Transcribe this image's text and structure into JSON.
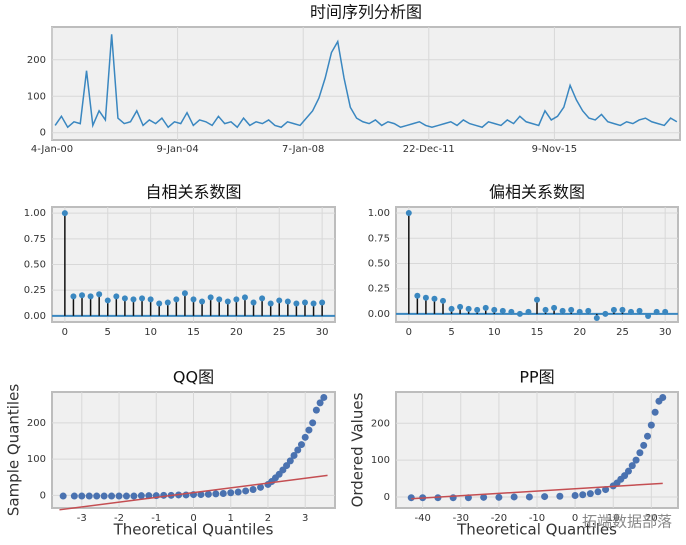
{
  "watermark": "拓端数据部落",
  "chart_data": [
    {
      "type": "line",
      "title": "时间序列分析图",
      "color": "#3a87c0",
      "categories": [
        "4-Jan-00",
        null,
        null,
        null,
        null,
        null,
        null,
        null,
        null,
        null,
        null,
        null,
        null,
        null,
        null,
        null,
        null,
        null,
        null,
        null,
        "9-Jan-04",
        null,
        null,
        null,
        null,
        null,
        null,
        null,
        null,
        null,
        null,
        null,
        null,
        null,
        null,
        null,
        null,
        null,
        null,
        null,
        "7-Jan-08",
        null,
        null,
        null,
        null,
        null,
        null,
        null,
        null,
        null,
        null,
        null,
        null,
        null,
        null,
        null,
        null,
        null,
        null,
        null,
        "22-Dec-11",
        null,
        null,
        null,
        null,
        null,
        null,
        null,
        null,
        null,
        null,
        null,
        null,
        null,
        null,
        null,
        null,
        null,
        null,
        null,
        "9-Nov-15",
        null,
        null,
        null,
        null,
        null,
        null,
        null,
        null,
        null,
        null,
        null,
        null,
        null,
        null,
        null,
        null,
        null,
        null,
        null
      ],
      "values": [
        20,
        45,
        15,
        30,
        25,
        170,
        20,
        60,
        35,
        270,
        40,
        25,
        30,
        60,
        20,
        35,
        25,
        40,
        15,
        30,
        25,
        55,
        20,
        35,
        30,
        20,
        45,
        25,
        30,
        15,
        40,
        20,
        30,
        25,
        35,
        20,
        15,
        30,
        25,
        20,
        40,
        60,
        95,
        150,
        220,
        250,
        150,
        70,
        40,
        30,
        25,
        35,
        20,
        30,
        25,
        15,
        20,
        25,
        30,
        20,
        15,
        20,
        25,
        30,
        20,
        35,
        25,
        20,
        15,
        30,
        25,
        20,
        35,
        25,
        45,
        30,
        25,
        20,
        60,
        35,
        45,
        70,
        130,
        90,
        60,
        40,
        35,
        50,
        30,
        25,
        20,
        30,
        25,
        35,
        40,
        30,
        25,
        20,
        40,
        30
      ],
      "ylim": [
        -20,
        290
      ],
      "yticks": [
        0,
        100,
        200
      ],
      "grid": true
    },
    {
      "type": "stem",
      "title": "自相关系数图",
      "color": "#3a87c0",
      "x": [
        0,
        1,
        2,
        3,
        4,
        5,
        6,
        7,
        8,
        9,
        10,
        11,
        12,
        13,
        14,
        15,
        16,
        17,
        18,
        19,
        20,
        21,
        22,
        23,
        24,
        25,
        26,
        27,
        28,
        29,
        30
      ],
      "values": [
        1.0,
        0.19,
        0.2,
        0.19,
        0.21,
        0.15,
        0.19,
        0.17,
        0.16,
        0.17,
        0.16,
        0.12,
        0.13,
        0.16,
        0.22,
        0.16,
        0.14,
        0.18,
        0.16,
        0.14,
        0.16,
        0.18,
        0.13,
        0.17,
        0.12,
        0.15,
        0.14,
        0.12,
        0.13,
        0.12,
        0.13
      ],
      "xlim": [
        -1.5,
        31.5
      ],
      "xticks": [
        0,
        5,
        10,
        15,
        20,
        25,
        30
      ],
      "ylim": [
        -0.06,
        1.06
      ],
      "yticks": [
        {
          "value": 0,
          "label": "0.00"
        },
        {
          "value": 0.25,
          "label": "0.25"
        },
        {
          "value": 0.5,
          "label": "0.50"
        },
        {
          "value": 0.75,
          "label": "0.75"
        },
        {
          "value": 1,
          "label": "1.00"
        }
      ],
      "grid": true
    },
    {
      "type": "stem",
      "title": "偏相关系数图",
      "color": "#3a87c0",
      "x": [
        0,
        1,
        2,
        3,
        4,
        5,
        6,
        7,
        8,
        9,
        10,
        11,
        12,
        13,
        14,
        15,
        16,
        17,
        18,
        19,
        20,
        21,
        22,
        23,
        24,
        25,
        26,
        27,
        28,
        29,
        30
      ],
      "values": [
        1.0,
        0.18,
        0.16,
        0.15,
        0.13,
        0.05,
        0.07,
        0.05,
        0.04,
        0.06,
        0.04,
        0.03,
        0.02,
        0.0,
        0.02,
        0.14,
        0.04,
        0.06,
        0.03,
        0.04,
        0.02,
        0.03,
        -0.04,
        0.0,
        0.04,
        0.04,
        0.02,
        0.03,
        -0.02,
        0.02,
        0.02
      ],
      "xlim": [
        -1.5,
        31.5
      ],
      "xticks": [
        0,
        5,
        10,
        15,
        20,
        25,
        30
      ],
      "ylim": [
        -0.08,
        1.06
      ],
      "yticks": [
        {
          "value": 0,
          "label": "0.00"
        },
        {
          "value": 0.25,
          "label": "0.25"
        },
        {
          "value": 0.5,
          "label": "0.50"
        },
        {
          "value": 0.75,
          "label": "0.75"
        },
        {
          "value": 1,
          "label": "1.00"
        }
      ],
      "grid": true
    },
    {
      "type": "scatter",
      "title": "QQ图",
      "xlabel": "Theoretical Quantiles",
      "ylabel": "Sample Quantiles",
      "color": "#4a72b0",
      "x": [
        -3.5,
        -3.2,
        -3.0,
        -2.8,
        -2.6,
        -2.4,
        -2.2,
        -2.0,
        -1.8,
        -1.6,
        -1.4,
        -1.2,
        -1.0,
        -0.8,
        -0.6,
        -0.4,
        -0.2,
        0,
        0.2,
        0.4,
        0.6,
        0.8,
        1.0,
        1.2,
        1.4,
        1.6,
        1.8,
        2.0,
        2.1,
        2.2,
        2.3,
        2.4,
        2.5,
        2.6,
        2.7,
        2.8,
        2.9,
        3.0,
        3.1,
        3.2,
        3.3,
        3.4,
        3.5
      ],
      "values": [
        -2,
        -2,
        -2,
        -2,
        -2,
        -2,
        -2,
        -2,
        -2,
        -2,
        -1,
        -1,
        -1,
        0,
        0,
        1,
        1,
        2,
        2,
        3,
        4,
        5,
        7,
        9,
        12,
        16,
        22,
        30,
        38,
        48,
        58,
        70,
        82,
        95,
        110,
        125,
        140,
        160,
        180,
        200,
        235,
        255,
        270
      ],
      "fit_line": {
        "color": "#c44e52",
        "x": [
          -3.6,
          3.6
        ],
        "values": [
          -40,
          55
        ]
      },
      "xlim": [
        -3.8,
        3.8
      ],
      "xticks": [
        -3,
        -2,
        -1,
        0,
        1,
        2,
        3
      ],
      "ylim": [
        -35,
        285
      ],
      "yticks": [
        0,
        100,
        200
      ],
      "grid": true
    },
    {
      "type": "scatter",
      "title": "PP图",
      "xlabel": "Theoretical Quantiles",
      "ylabel": "Ordered Values",
      "color": "#4a72b0",
      "x": [
        -43,
        -40,
        -36,
        -32,
        -28,
        -24,
        -20,
        -16,
        -12,
        -8,
        -4,
        0,
        2,
        4,
        6,
        8,
        10,
        11,
        12,
        13,
        14,
        15,
        16,
        17,
        18,
        19,
        20,
        21,
        22,
        23
      ],
      "values": [
        -2,
        -2,
        -2,
        -2,
        -2,
        -1,
        -1,
        0,
        0,
        1,
        2,
        4,
        6,
        9,
        14,
        20,
        30,
        38,
        48,
        58,
        70,
        85,
        100,
        120,
        140,
        165,
        195,
        230,
        260,
        270
      ],
      "fit_line": {
        "color": "#c44e52",
        "x": [
          -43,
          23
        ],
        "values": [
          -5,
          37
        ]
      },
      "xlim": [
        -47,
        27
      ],
      "xticks": [
        -40,
        -30,
        -20,
        -10,
        0,
        10,
        20
      ],
      "ylim": [
        -30,
        285
      ],
      "yticks": [
        0,
        100,
        200
      ],
      "grid": true
    }
  ]
}
